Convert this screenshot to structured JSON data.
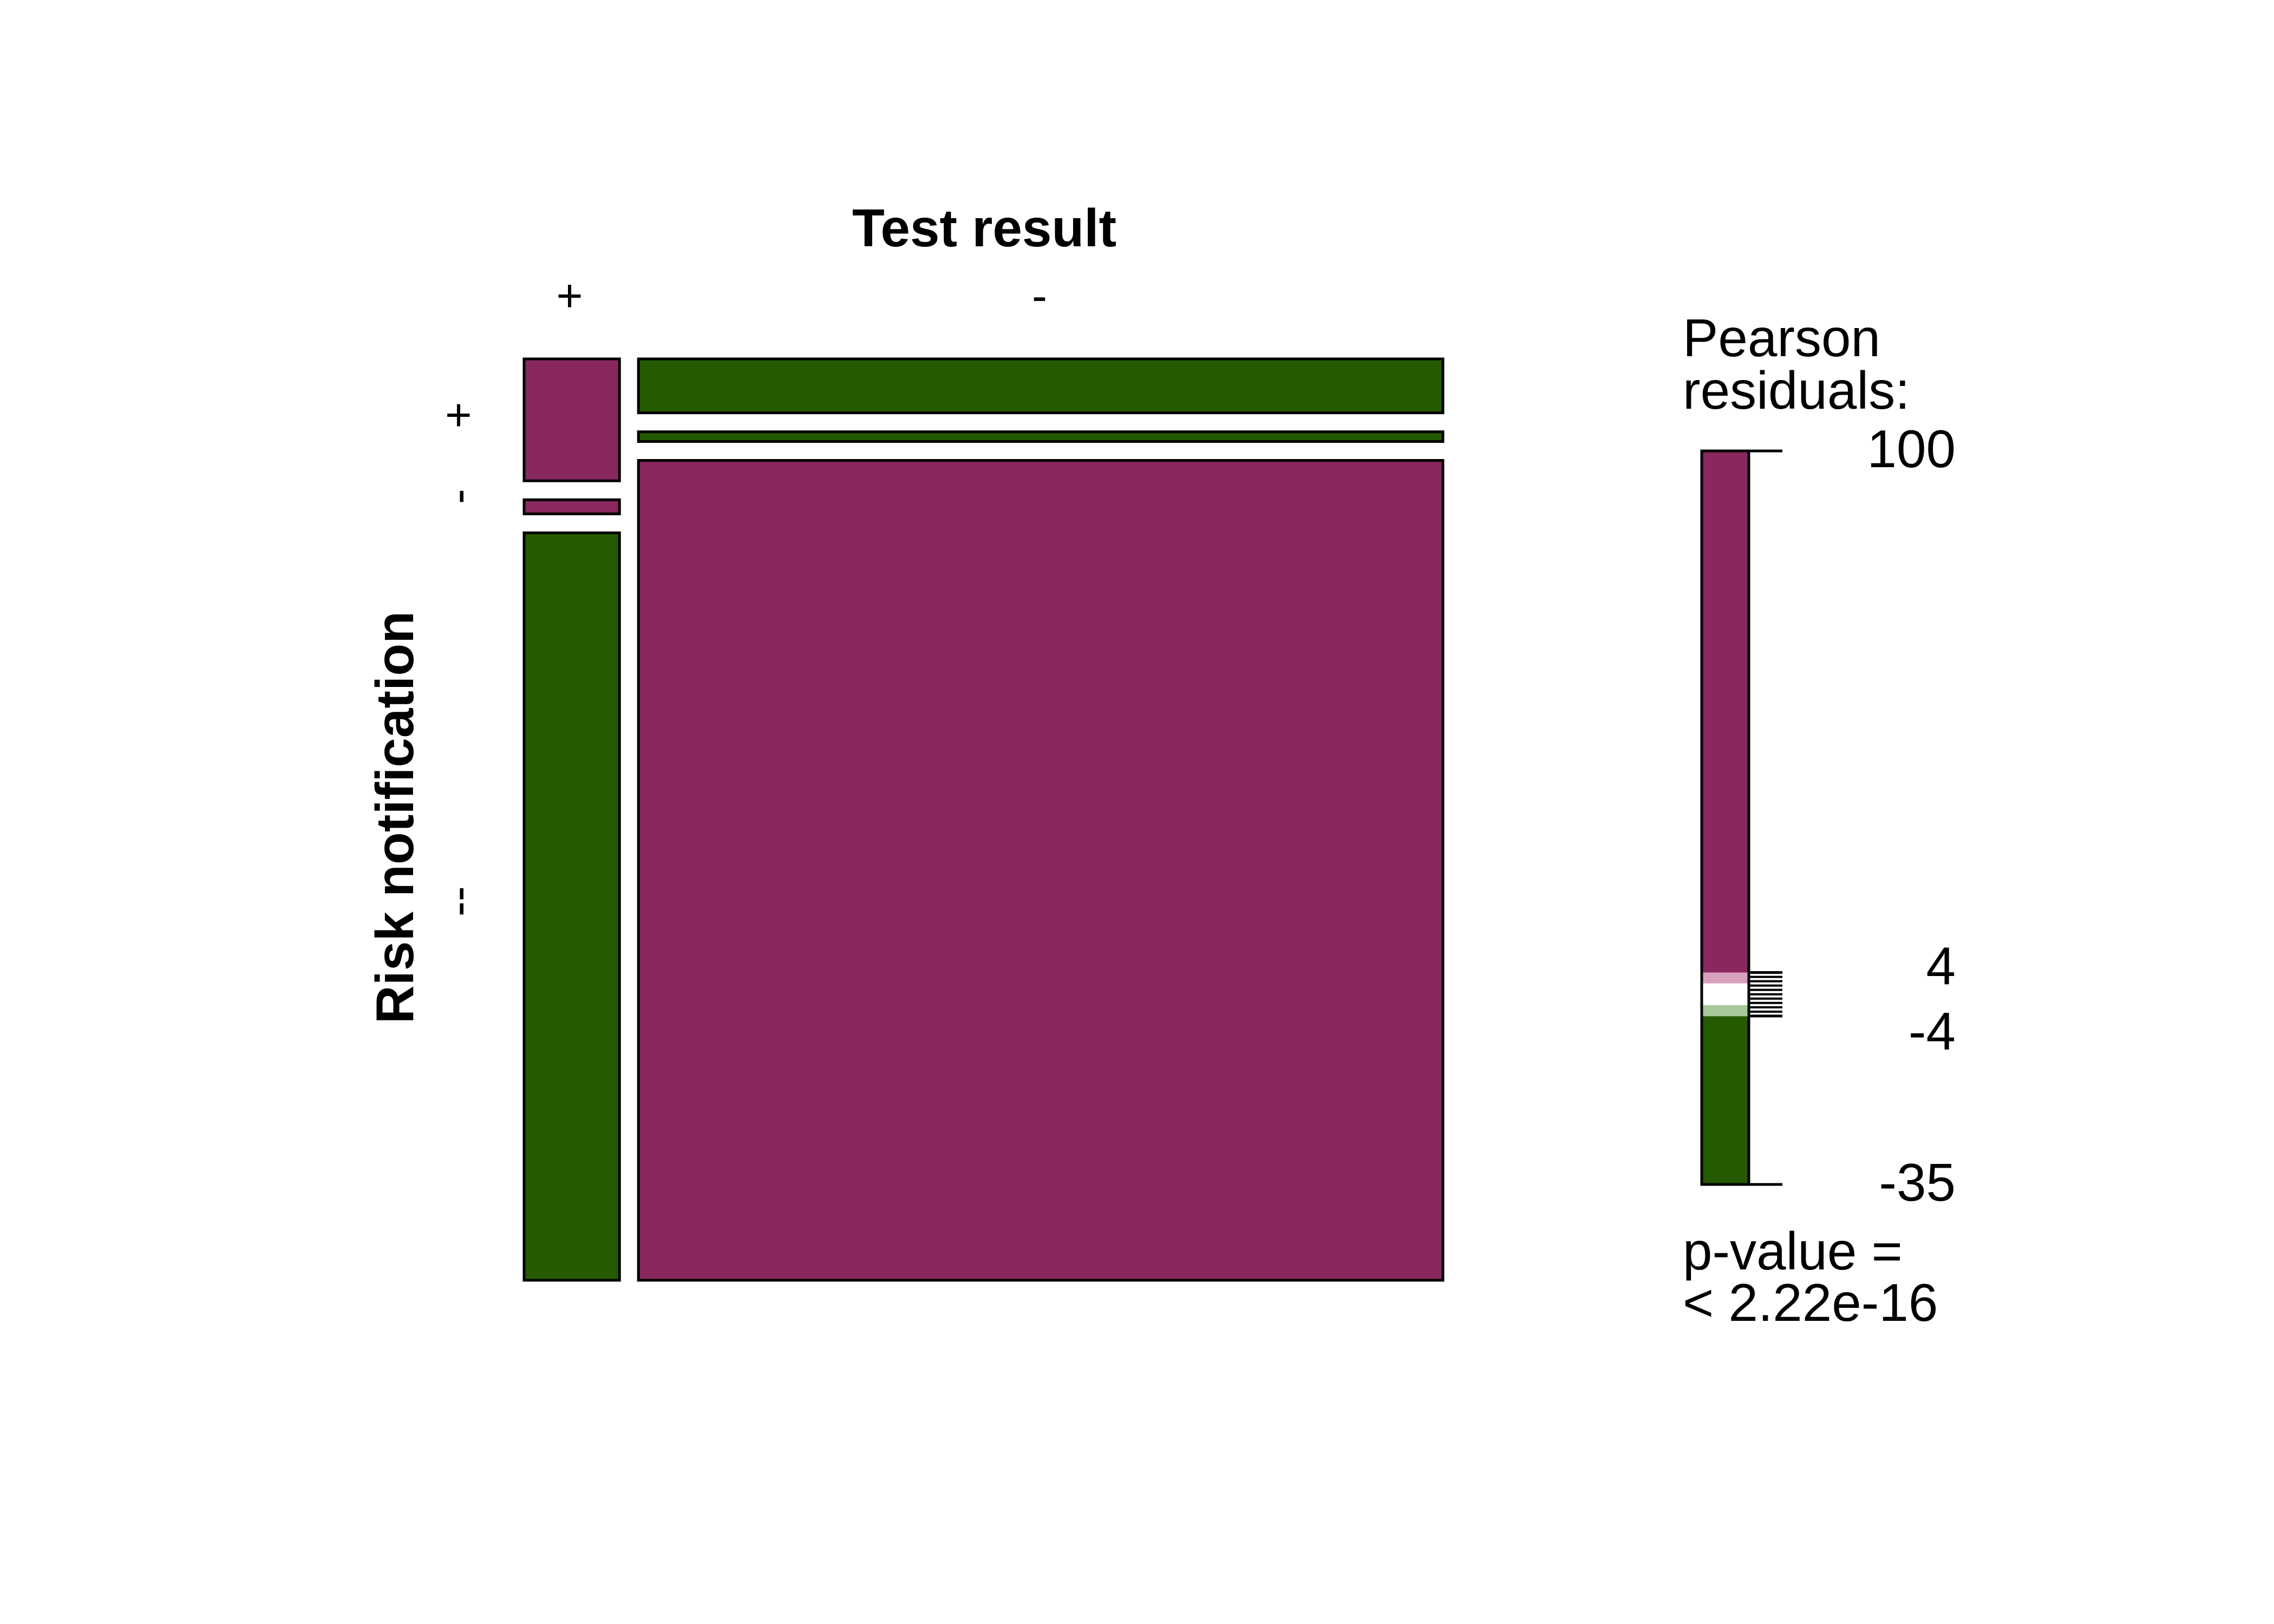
{
  "chart_data": {
    "type": "mosaic",
    "x_variable": {
      "name": "Test result",
      "levels": [
        "+",
        "-"
      ],
      "widths": [
        0.106,
        0.894
      ]
    },
    "y_variable": {
      "name": "Risk notification",
      "levels": [
        "+",
        "-",
        "--"
      ]
    },
    "cells": [
      {
        "x": "+",
        "y": "+",
        "height": 0.138,
        "residual": 100
      },
      {
        "x": "+",
        "y": "-",
        "height": 0.016,
        "residual": 100
      },
      {
        "x": "+",
        "y": "--",
        "height": 0.846,
        "residual": -35
      },
      {
        "x": "-",
        "y": "+",
        "height": 0.061,
        "residual": -35
      },
      {
        "x": "-",
        "y": "-",
        "height": 0.011,
        "residual": -35
      },
      {
        "x": "-",
        "y": "--",
        "height": 0.928,
        "residual": 100
      }
    ],
    "legend": {
      "title_lines": [
        "Pearson",
        "residuals:"
      ],
      "range": [
        -35,
        100
      ],
      "ticks": [
        "100",
        "4",
        "-4",
        "-35"
      ],
      "shading_breaks": [
        -4,
        -2,
        0,
        2,
        4
      ],
      "pvalue_lines": [
        "p-value =",
        "< 2.22e-16"
      ]
    },
    "colors": {
      "positive": "#88285E",
      "positive_light": "#D7A1BE",
      "negative": "#255A00",
      "negative_light": "#A8C99A",
      "neutral": "#FFFFFF"
    }
  }
}
